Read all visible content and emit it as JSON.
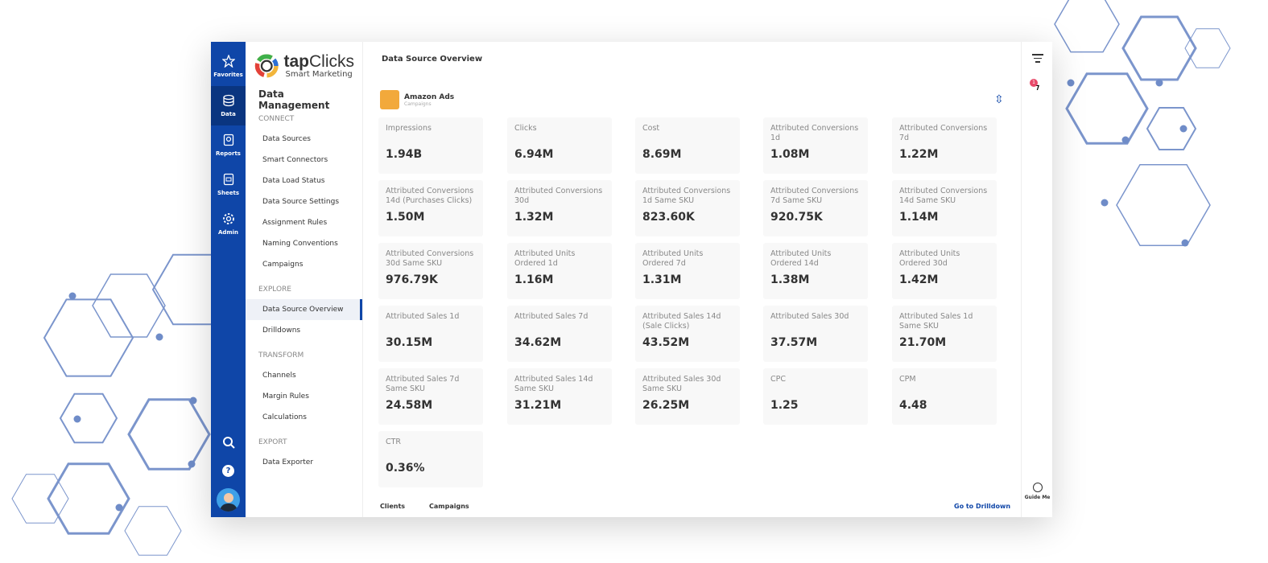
{
  "rail": {
    "items": [
      {
        "label": "Favorites",
        "icon": "star-icon"
      },
      {
        "label": "Data",
        "icon": "database-icon",
        "active": true
      },
      {
        "label": "Reports",
        "icon": "report-icon"
      },
      {
        "label": "Sheets",
        "icon": "sheet-icon"
      },
      {
        "label": "Admin",
        "icon": "gear-icon"
      }
    ]
  },
  "logo": {
    "brand_a": "tap",
    "brand_b": "Clicks",
    "tagline": "Smart Marketing"
  },
  "nav": {
    "title": "Data Management",
    "sections": [
      {
        "label": "CONNECT",
        "items": [
          "Data Sources",
          "Smart Connectors",
          "Data Load Status",
          "Data Source Settings",
          "Assignment Rules",
          "Naming Conventions",
          "Campaigns"
        ]
      },
      {
        "label": "EXPLORE",
        "items": [
          "Data Source Overview",
          "Drilldowns"
        ]
      },
      {
        "label": "TRANSFORM",
        "items": [
          "Channels",
          "Margin Rules",
          "Calculations"
        ]
      },
      {
        "label": "EXPORT",
        "items": [
          "Data Exporter"
        ]
      }
    ],
    "active": "Data Source Overview"
  },
  "main": {
    "title": "Data Source Overview",
    "source": {
      "name": "Amazon Ads",
      "sub": "Campaigns"
    },
    "metrics": [
      [
        "Impressions",
        "1.94B"
      ],
      [
        "Clicks",
        "6.94M"
      ],
      [
        "Cost",
        "8.69M"
      ],
      [
        "Attributed Conversions 1d",
        "1.08M"
      ],
      [
        "Attributed Conversions 7d",
        "1.22M"
      ],
      [
        "Attributed Conversions 14d (Purchases Clicks)",
        "1.50M"
      ],
      [
        "Attributed Conversions 30d",
        "1.32M"
      ],
      [
        "Attributed Conversions 1d Same SKU",
        "823.60K"
      ],
      [
        "Attributed Conversions 7d Same SKU",
        "920.75K"
      ],
      [
        "Attributed Conversions 14d Same SKU",
        "1.14M"
      ],
      [
        "Attributed Conversions 30d Same SKU",
        "976.79K"
      ],
      [
        "Attributed Units Ordered 1d",
        "1.16M"
      ],
      [
        "Attributed Units Ordered 7d",
        "1.31M"
      ],
      [
        "Attributed Units Ordered 14d",
        "1.38M"
      ],
      [
        "Attributed Units Ordered 30d",
        "1.42M"
      ],
      [
        "Attributed Sales 1d",
        "30.15M"
      ],
      [
        "Attributed Sales 7d",
        "34.62M"
      ],
      [
        "Attributed Sales 14d (Sale Clicks)",
        "43.52M"
      ],
      [
        "Attributed Sales 30d",
        "37.57M"
      ],
      [
        "Attributed Sales 1d Same SKU",
        "21.70M"
      ],
      [
        "Attributed Sales 7d Same SKU",
        "24.58M"
      ],
      [
        "Attributed Sales 14d Same SKU",
        "31.21M"
      ],
      [
        "Attributed Sales 30d Same SKU",
        "26.25M"
      ],
      [
        "CPC",
        "1.25"
      ],
      [
        "CPM",
        "4.48"
      ],
      [
        "CTR",
        "0.36%"
      ]
    ],
    "footer": {
      "clients": "Clients",
      "campaigns": "Campaigns",
      "drilldown": "Go to Drilldown"
    }
  },
  "right": {
    "badge": "1",
    "guide": "Guide Me"
  },
  "colors": {
    "rail": "#0f46a8",
    "accent": "#0f46a8",
    "amazon": "#f2a93b",
    "badge": "#e84a6a"
  }
}
